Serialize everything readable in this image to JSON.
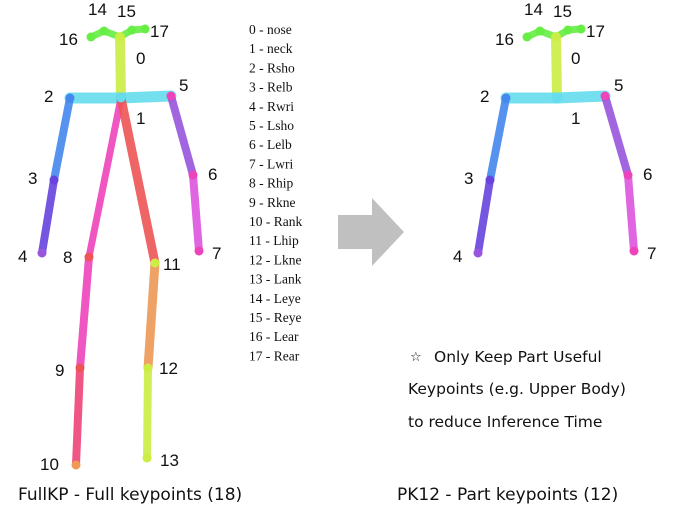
{
  "left_figure": {
    "caption": "FullKP - Full keypoints (18)",
    "keypoints": [
      {
        "id": "0",
        "label": "0"
      },
      {
        "id": "1",
        "label": "1"
      },
      {
        "id": "2",
        "label": "2"
      },
      {
        "id": "3",
        "label": "3"
      },
      {
        "id": "4",
        "label": "4"
      },
      {
        "id": "5",
        "label": "5"
      },
      {
        "id": "6",
        "label": "6"
      },
      {
        "id": "7",
        "label": "7"
      },
      {
        "id": "8",
        "label": "8"
      },
      {
        "id": "9",
        "label": "9"
      },
      {
        "id": "10",
        "label": "10"
      },
      {
        "id": "11",
        "label": "11"
      },
      {
        "id": "12",
        "label": "12"
      },
      {
        "id": "13",
        "label": "13"
      },
      {
        "id": "14",
        "label": "14"
      },
      {
        "id": "15",
        "label": "15"
      },
      {
        "id": "16",
        "label": "16"
      },
      {
        "id": "17",
        "label": "17"
      }
    ]
  },
  "legend": {
    "items": [
      "0 - nose",
      "1 - neck",
      "2 - Rsho",
      "3 - Relb",
      "4 - Rwri",
      "5 - Lsho",
      "6 - Lelb",
      "7 - Lwri",
      "8 - Rhip",
      "9 - Rkne",
      "10 - Rank",
      "11 - Lhip",
      "12 - Lkne",
      "13 - Lank",
      "14 - Leye",
      "15 - Reye",
      "16 - Lear",
      "17 - Rear"
    ]
  },
  "right_figure": {
    "caption": "PK12 - Part keypoints (12)",
    "keypoints": [
      {
        "id": "0",
        "label": "0"
      },
      {
        "id": "1",
        "label": "1"
      },
      {
        "id": "2",
        "label": "2"
      },
      {
        "id": "3",
        "label": "3"
      },
      {
        "id": "4",
        "label": "4"
      },
      {
        "id": "5",
        "label": "5"
      },
      {
        "id": "6",
        "label": "6"
      },
      {
        "id": "7",
        "label": "7"
      },
      {
        "id": "14",
        "label": "14"
      },
      {
        "id": "15",
        "label": "15"
      },
      {
        "id": "16",
        "label": "16"
      },
      {
        "id": "17",
        "label": "17"
      }
    ]
  },
  "note": {
    "star": "☆",
    "lines": [
      "Only Keep Part Useful",
      "Keypoints (e.g. Upper Body)",
      "to reduce Inference Time"
    ]
  },
  "colors": {
    "head": "#66ee44",
    "neck": "#ccee44",
    "shoulders": "#66ddee",
    "right_arm_upper": "#4488ee",
    "right_arm_lower": "#6644dd",
    "left_arm_upper": "#9955dd",
    "left_arm_lower": "#dd55dd",
    "right_body": "#ee44bb",
    "right_leg_lower": "#ee4477",
    "left_body": "#ee5555",
    "left_leg_upper": "#ee9955",
    "left_leg_lower": "#ccee44",
    "arrow": "#c0c0c0"
  }
}
